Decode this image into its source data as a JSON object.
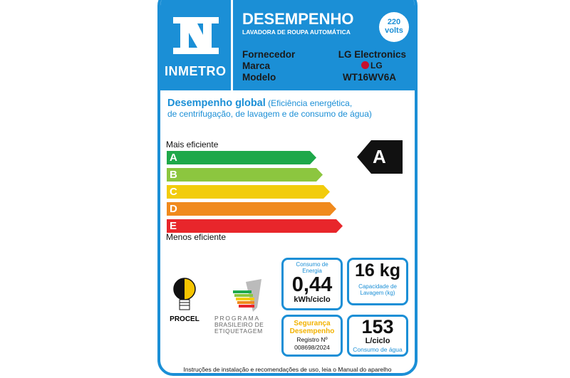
{
  "header": {
    "logo": "INMETRO",
    "title": "DESEMPENHO",
    "subtitle": "LAVADORA DE ROUPA AUTOMÁTICA",
    "voltage_value": "220",
    "voltage_unit": "volts"
  },
  "info": {
    "supplier_label": "Fornecedor",
    "supplier": "LG Electronics",
    "brand_label": "Marca",
    "brand": "LG",
    "model_label": "Modelo",
    "model": "WT16WV6A"
  },
  "rating": {
    "heading": "Desempenho global",
    "heading_detail_1": "(Eficiência energética,",
    "heading_detail_2": "de centrifugação, de lavagem e de consumo de água)",
    "top_label": "Mais eficiente",
    "bottom_label": "Menos eficiente",
    "classes": [
      {
        "letter": "A",
        "color": "#1ea84a"
      },
      {
        "letter": "B",
        "color": "#8cc63f"
      },
      {
        "letter": "C",
        "color": "#f2cc0c"
      },
      {
        "letter": "D",
        "color": "#f08a1d"
      },
      {
        "letter": "E",
        "color": "#e8262b"
      }
    ],
    "current": "A"
  },
  "energy": {
    "label": "Consumo de Energia",
    "value": "0,44",
    "unit": "kWh/ciclo"
  },
  "capacity": {
    "value": "16 kg",
    "label": "Capacidade de Lavagem (kg)"
  },
  "safety": {
    "line1": "Segurança",
    "line2": "Desempenho",
    "reg_label": "Registro Nº",
    "reg": "008698/2024"
  },
  "water": {
    "value": "153",
    "unit": "L/ciclo",
    "label": "Consumo de água"
  },
  "logos": {
    "procel": "PROCEL",
    "pbe_1": "PROGRAMA",
    "pbe_2": "BRASILEIRO DE",
    "pbe_3": "ETIQUETAGEM"
  },
  "footer": "Instruções de instalação e recomendações de uso, leia o Manual do aparelho"
}
